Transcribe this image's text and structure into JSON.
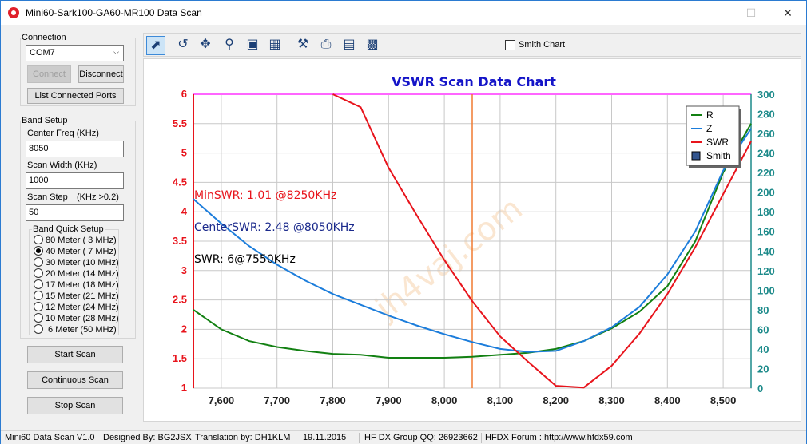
{
  "window": {
    "title": "Mini60-Sark100-GA60-MR100 Data Scan",
    "min": "—",
    "max": "☐",
    "close": "✕"
  },
  "connection": {
    "label": "Connection",
    "port": "COM7",
    "connect": "Connect",
    "disconnect": "Disconnect",
    "list_ports": "List Connected Ports"
  },
  "band_setup": {
    "label": "Band Setup",
    "center_label": "Center Freq  (KHz)",
    "center_value": "8050",
    "width_label": "Scan Width   (KHz)",
    "width_value": "1000",
    "step_label": "Scan Step",
    "step_hint": "(KHz >0.2)",
    "step_value": "50",
    "quick_label": "Band Quick Setup",
    "bands": [
      {
        "label": "80 Meter  (  3 MHz)",
        "selected": false
      },
      {
        "label": "40 Meter  (  7 MHz)",
        "selected": true
      },
      {
        "label": "30 Meter  (10 MHz)",
        "selected": false
      },
      {
        "label": "20 Meter  (14 MHz)",
        "selected": false
      },
      {
        "label": "17 Meter  (18 MHz)",
        "selected": false
      },
      {
        "label": "15 Meter  (21 MHz)",
        "selected": false
      },
      {
        "label": "12 Meter  (24 MHz)",
        "selected": false
      },
      {
        "label": "10 Meter  (28 MHz)",
        "selected": false
      },
      {
        "label": "  6 Meter  (50 MHz)",
        "selected": false
      }
    ]
  },
  "actions": {
    "start": "Start Scan",
    "continuous": "Continuous Scan",
    "stop": "Stop Scan"
  },
  "toolbar": {
    "tools": [
      "pointer-icon",
      "undo-icon",
      "pan-icon",
      "zoom-icon",
      "zoom-fit-icon",
      "data-icon",
      "settings-icon",
      "print-icon",
      "export-icon",
      "save-icon"
    ],
    "smith_label": "Smith Chart"
  },
  "chart_data": {
    "type": "line",
    "title": "VSWR Scan Data Chart",
    "x": [
      7550,
      7600,
      7650,
      7700,
      7750,
      7800,
      7850,
      7900,
      7950,
      8000,
      8050,
      8100,
      8150,
      8200,
      8250,
      8300,
      8350,
      8400,
      8450,
      8500,
      8550
    ],
    "xlim": [
      7550,
      8550
    ],
    "x_ticks": [
      "7,600",
      "7,700",
      "7,800",
      "7,900",
      "8,000",
      "8,100",
      "8,200",
      "8,300",
      "8,400",
      "8,500"
    ],
    "x_tick_values": [
      7600,
      7700,
      7800,
      7900,
      8000,
      8100,
      8200,
      8300,
      8400,
      8500
    ],
    "ylim_left": [
      1,
      6
    ],
    "y_ticks_left": [
      "1",
      "1.5",
      "2",
      "2.5",
      "3",
      "3.5",
      "4",
      "4.5",
      "5",
      "5.5",
      "6"
    ],
    "ylim_right": [
      0,
      300
    ],
    "y_ticks_right": [
      "0",
      "20",
      "40",
      "60",
      "80",
      "100",
      "120",
      "140",
      "160",
      "180",
      "200",
      "220",
      "240",
      "260",
      "280",
      "300"
    ],
    "series": [
      {
        "name": "R",
        "axis": "right",
        "color": "#128012",
        "values": [
          [
            7550,
            80
          ],
          [
            7600,
            60
          ],
          [
            7650,
            48
          ],
          [
            7700,
            42
          ],
          [
            7750,
            38
          ],
          [
            7800,
            35
          ],
          [
            7850,
            34
          ],
          [
            7900,
            31
          ],
          [
            7950,
            31
          ],
          [
            8000,
            31
          ],
          [
            8050,
            32
          ],
          [
            8100,
            34
          ],
          [
            8150,
            36
          ],
          [
            8200,
            40
          ],
          [
            8250,
            48
          ],
          [
            8300,
            61
          ],
          [
            8350,
            78
          ],
          [
            8400,
            104
          ],
          [
            8450,
            150
          ],
          [
            8500,
            220
          ],
          [
            8550,
            270
          ]
        ]
      },
      {
        "name": "Z",
        "axis": "right",
        "color": "#1c7ddb",
        "values": [
          [
            7550,
            193
          ],
          [
            7600,
            168
          ],
          [
            7650,
            145
          ],
          [
            7700,
            126
          ],
          [
            7750,
            110
          ],
          [
            7800,
            96
          ],
          [
            7850,
            85
          ],
          [
            7900,
            74
          ],
          [
            7950,
            64
          ],
          [
            8000,
            55
          ],
          [
            8050,
            47
          ],
          [
            8100,
            40
          ],
          [
            8150,
            37
          ],
          [
            8200,
            38
          ],
          [
            8250,
            48
          ],
          [
            8300,
            62
          ],
          [
            8350,
            83
          ],
          [
            8400,
            116
          ],
          [
            8450,
            160
          ],
          [
            8500,
            222
          ],
          [
            8550,
            265
          ]
        ]
      },
      {
        "name": "SWR",
        "axis": "left",
        "color": "#e8141c",
        "values": [
          [
            7800,
            6
          ],
          [
            7850,
            5.78
          ],
          [
            7900,
            4.75
          ],
          [
            7950,
            3.95
          ],
          [
            8000,
            3.18
          ],
          [
            8050,
            2.48
          ],
          [
            8100,
            1.88
          ],
          [
            8150,
            1.45
          ],
          [
            8200,
            1.04
          ],
          [
            8250,
            1.01
          ],
          [
            8300,
            1.38
          ],
          [
            8350,
            1.93
          ],
          [
            8400,
            2.6
          ],
          [
            8450,
            3.4
          ],
          [
            8500,
            4.3
          ],
          [
            8550,
            5.2
          ]
        ]
      }
    ],
    "legend": [
      {
        "name": "R",
        "color": "#128012",
        "kind": "line"
      },
      {
        "name": "Z",
        "color": "#1c7ddb",
        "kind": "line"
      },
      {
        "name": "SWR",
        "color": "#e8141c",
        "kind": "line"
      },
      {
        "name": "Smith",
        "color": "#1a3d7c",
        "kind": "box"
      }
    ],
    "legend_position": "top-right",
    "markers": {
      "center_freq": 8050,
      "swr_limit_line": 6,
      "center_color": "#f07a30",
      "limit_color": "#ff66ff"
    },
    "annotations": [
      {
        "text": "MinSWR: 1.01 @8250KHz",
        "color": "#e8141c"
      },
      {
        "text": "CenterSWR: 2.48 @8050KHz",
        "color": "#1b2a8c"
      },
      {
        "text": "SWR: 6@7550KHz",
        "color": "#000000"
      }
    ],
    "watermark": "jh4vaj.com",
    "grid": true
  },
  "status": {
    "version": "Mini60 Data Scan V1.0",
    "designed": "Designed By: BG2JSX",
    "translation": "Translation by: DH1KLM",
    "date": "19.11.2015",
    "qq": "HF DX Group QQ: 26923662",
    "forum": "HFDX Forum :  http://www.hfdx59.com"
  }
}
